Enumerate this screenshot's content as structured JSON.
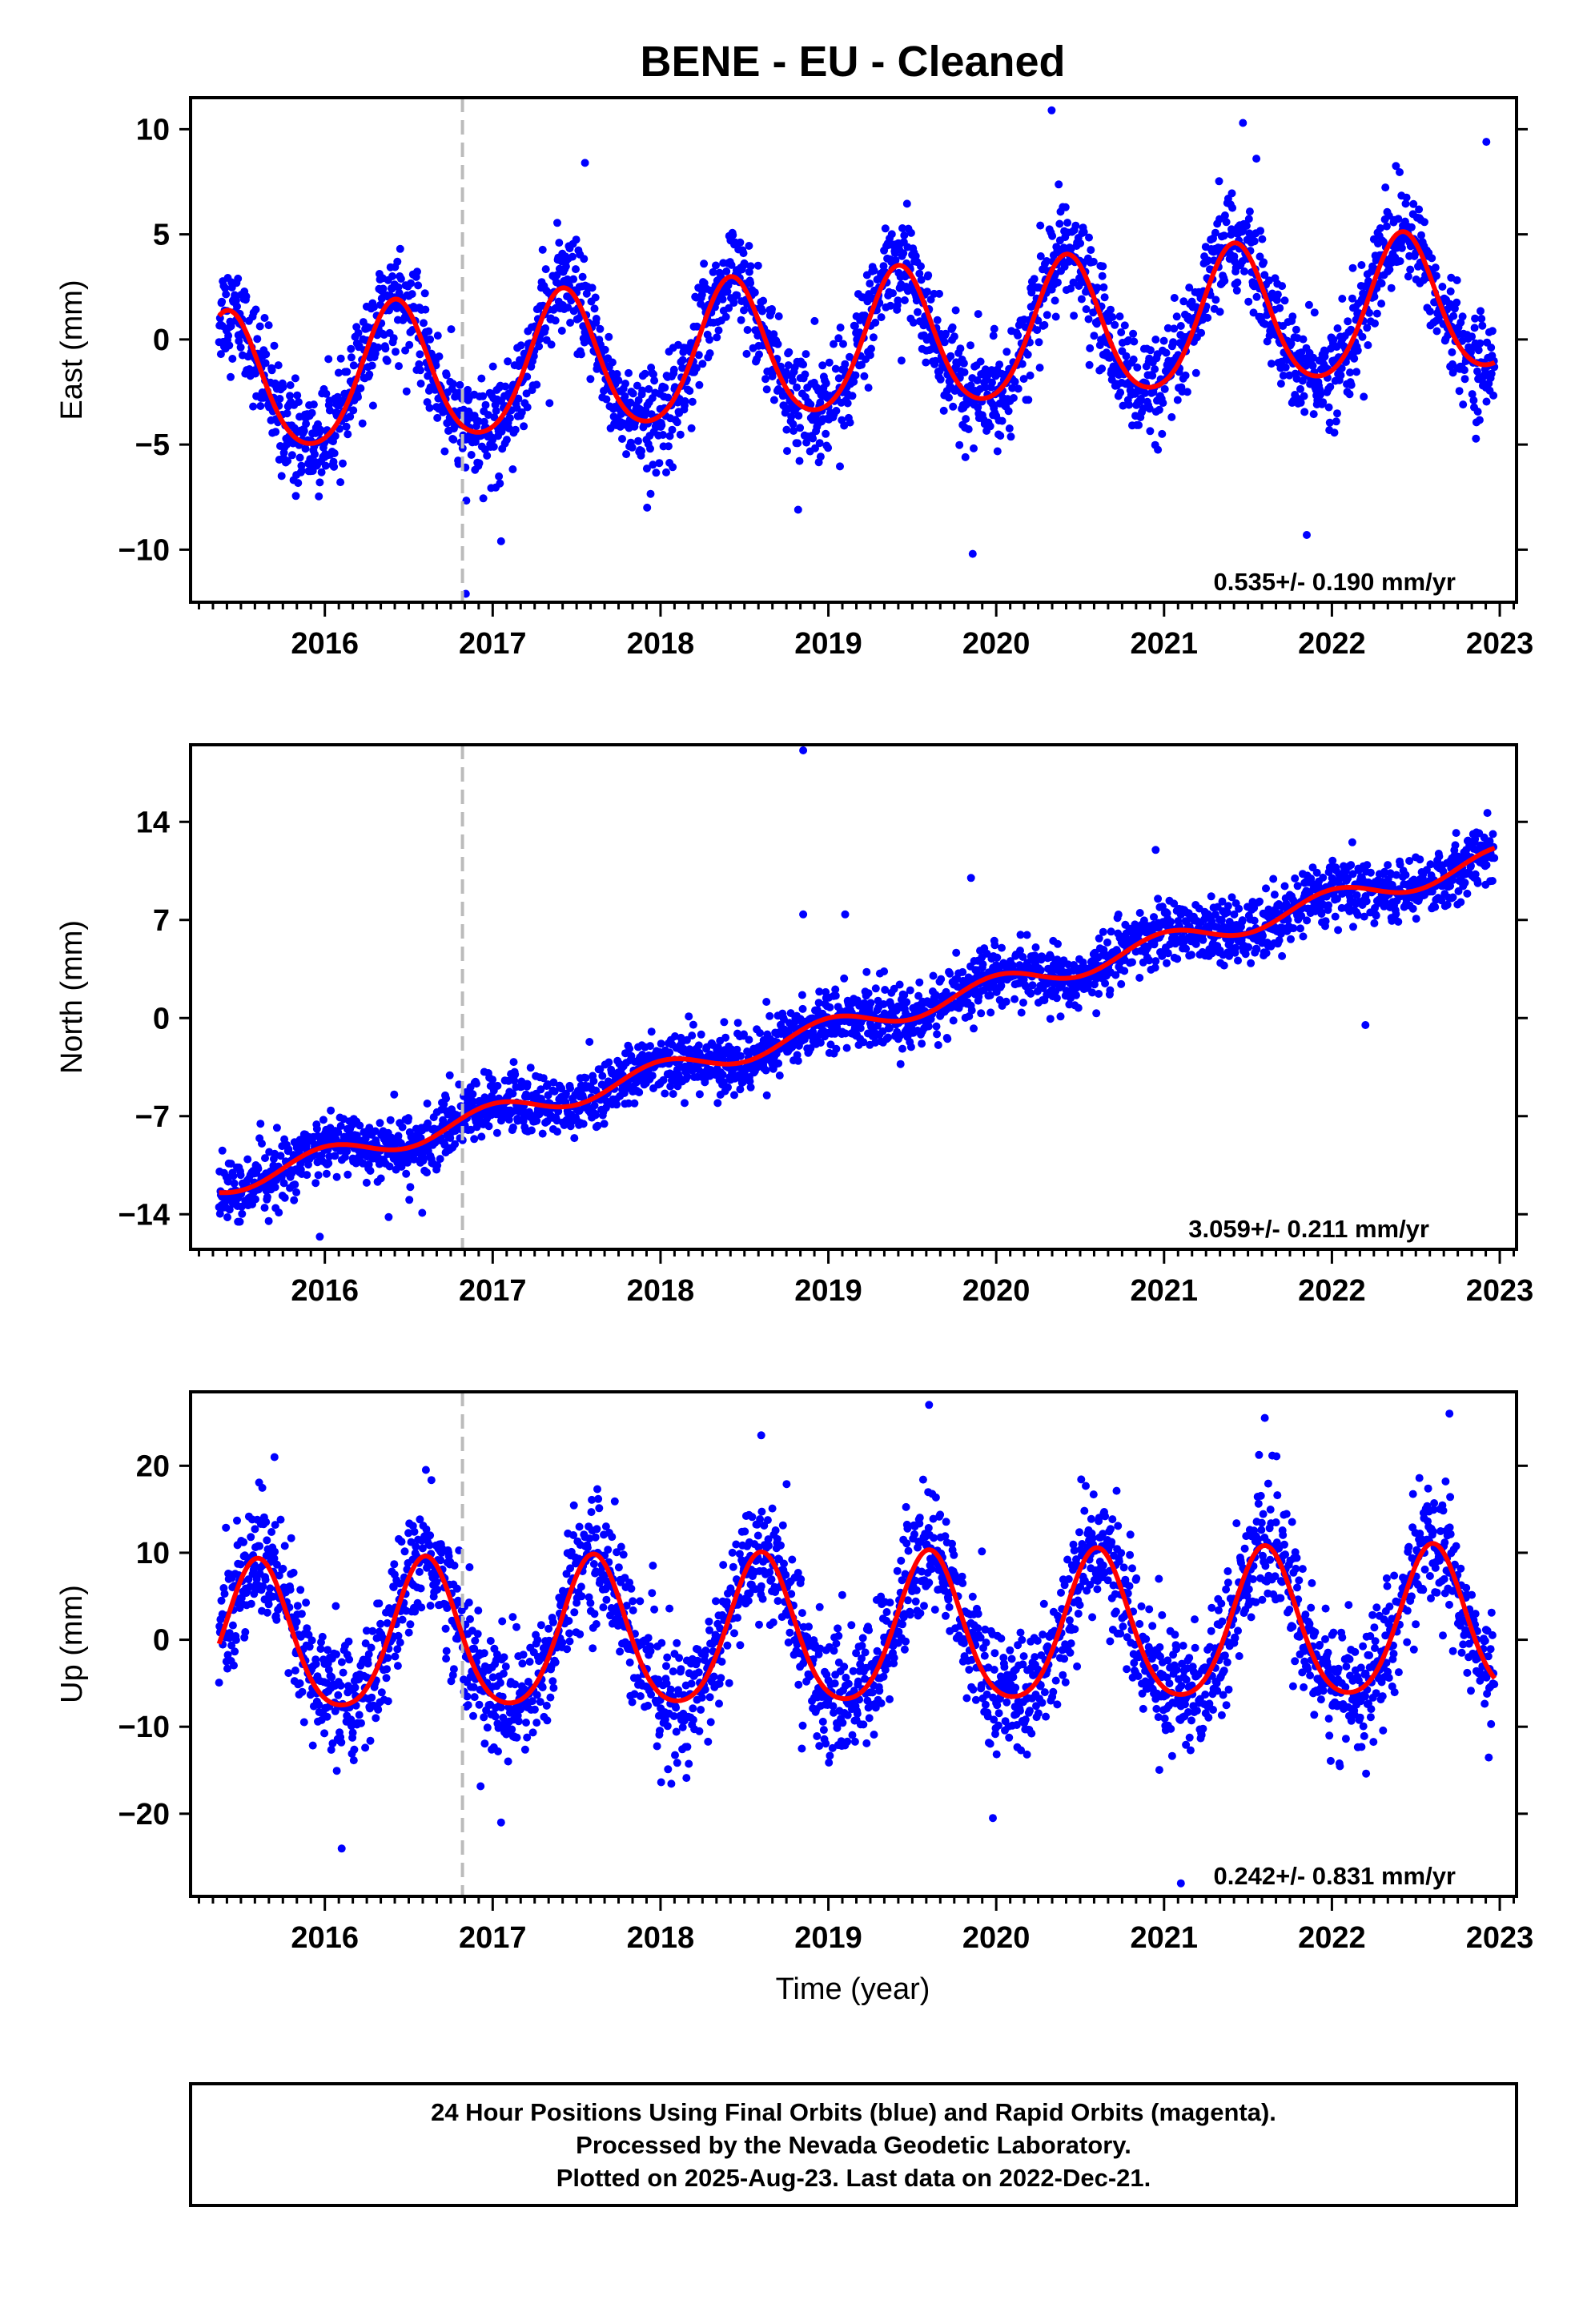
{
  "title": "BENE  - EU - Cleaned",
  "x_axis_label": "Time (year)",
  "footer": {
    "line1": "24 Hour Positions Using Final Orbits (blue) and Rapid Orbits (magenta).",
    "line2": "Processed by the Nevada Geodetic Laboratory.",
    "line3": "Plotted on 2025-Aug-23. Last data on 2022-Dec-21."
  },
  "colors": {
    "final_orbits": "#0000ff",
    "rapid_orbits": "#ff00ff",
    "model_fit": "#ff0000",
    "event_line": "#bbbbbb",
    "frame": "#000000"
  },
  "chart_data": [
    {
      "type": "scatter",
      "name": "east",
      "ylabel": "East (mm)",
      "rate_label": "0.535+/- 0.190 mm/yr",
      "xlim": [
        2015.2,
        2023.1
      ],
      "ylim": [
        -12.5,
        11.5
      ],
      "xticks": [
        2016,
        2017,
        2018,
        2019,
        2020,
        2021,
        2022,
        2023
      ],
      "yticks": [
        -10,
        -5,
        0,
        5,
        10
      ],
      "event_x": 2016.82,
      "data_span": [
        2015.37,
        2022.97
      ],
      "model": {
        "offset": -0.4,
        "trend": 0.535,
        "ref": 2019.0,
        "amplitude": 3.3,
        "peak_phase": 0.42,
        "semi_amplitude": 0.4,
        "noise_sd": 1.2
      },
      "outliers": [
        {
          "x": 2016.84,
          "y": -12.1
        },
        {
          "x": 2017.55,
          "y": 8.4
        },
        {
          "x": 2017.05,
          "y": -9.6
        },
        {
          "x": 2017.92,
          "y": -8.0
        },
        {
          "x": 2018.82,
          "y": -8.1
        },
        {
          "x": 2019.86,
          "y": -10.2
        },
        {
          "x": 2020.33,
          "y": 10.9
        },
        {
          "x": 2021.47,
          "y": 10.3
        },
        {
          "x": 2021.85,
          "y": -9.3
        },
        {
          "x": 2022.92,
          "y": 9.4
        },
        {
          "x": 2021.55,
          "y": 8.6
        },
        {
          "x": 2015.97,
          "y": -6.8
        }
      ]
    },
    {
      "type": "scatter",
      "name": "north",
      "ylabel": "North (mm)",
      "rate_label": "3.059+/- 0.211 mm/yr",
      "xlim": [
        2015.2,
        2023.1
      ],
      "ylim": [
        -16.5,
        19.5
      ],
      "xticks": [
        2016,
        2017,
        2018,
        2019,
        2020,
        2021,
        2022,
        2023
      ],
      "yticks": [
        -14,
        -7,
        0,
        7,
        14
      ],
      "event_x": 2016.82,
      "data_span": [
        2015.37,
        2022.97
      ],
      "model": {
        "offset": -0.8,
        "trend": 3.059,
        "ref": 2019.0,
        "amplitude": 0.8,
        "peak_phase": 0.0,
        "semi_amplitude": 0.0,
        "noise_sd": 1.1
      },
      "outliers": [
        {
          "x": 2018.85,
          "y": 19.1
        },
        {
          "x": 2018.85,
          "y": 7.4
        },
        {
          "x": 2019.1,
          "y": 7.4
        },
        {
          "x": 2019.85,
          "y": 10.0
        },
        {
          "x": 2020.95,
          "y": 12.0
        },
        {
          "x": 2022.2,
          "y": -0.5
        },
        {
          "x": 2016.38,
          "y": -14.2
        },
        {
          "x": 2016.58,
          "y": -13.9
        },
        {
          "x": 2015.97,
          "y": -15.6
        }
      ]
    },
    {
      "type": "scatter",
      "name": "up",
      "ylabel": "Up (mm)",
      "rate_label": "0.242+/- 0.831 mm/yr",
      "xlim": [
        2015.2,
        2023.1
      ],
      "ylim": [
        -29.5,
        28.5
      ],
      "xticks": [
        2016,
        2017,
        2018,
        2019,
        2020,
        2021,
        2022,
        2023
      ],
      "yticks": [
        -20,
        -10,
        0,
        10,
        20
      ],
      "event_x": 2016.82,
      "data_span": [
        2015.37,
        2022.97
      ],
      "model": {
        "offset": 0.5,
        "trend": 0.242,
        "ref": 2019.0,
        "amplitude": 8.5,
        "peak_phase": 0.6,
        "semi_amplitude": 1.2,
        "noise_sd": 3.6
      },
      "outliers": [
        {
          "x": 2016.1,
          "y": -24.0
        },
        {
          "x": 2019.6,
          "y": 27.0
        },
        {
          "x": 2021.1,
          "y": -28.0
        },
        {
          "x": 2022.7,
          "y": 26.0
        },
        {
          "x": 2017.05,
          "y": -21.0
        },
        {
          "x": 2019.98,
          "y": -20.5
        },
        {
          "x": 2021.6,
          "y": 25.5
        },
        {
          "x": 2018.6,
          "y": 23.5
        },
        {
          "x": 2015.7,
          "y": 21.0
        }
      ]
    }
  ]
}
